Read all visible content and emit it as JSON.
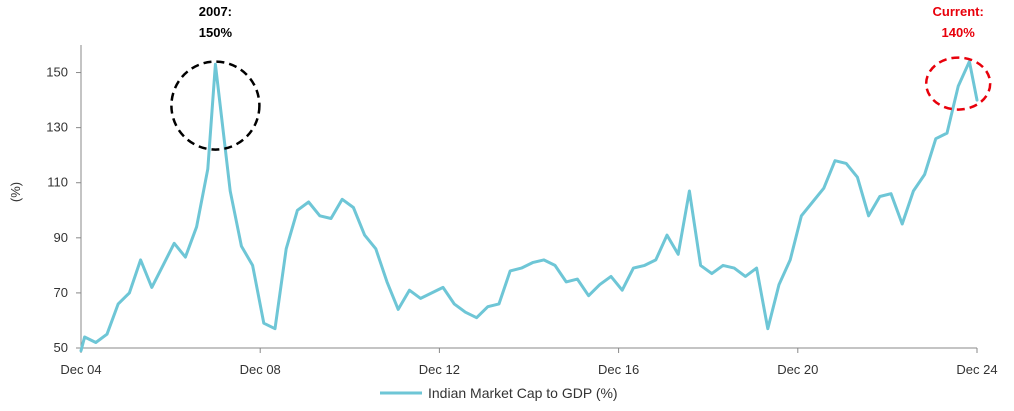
{
  "chart_data": {
    "type": "line",
    "ylabel": "(%)",
    "ylim": [
      50,
      160
    ],
    "yticks": [
      "50",
      "70",
      "90",
      "110",
      "130",
      "150"
    ],
    "xlim": [
      2004.92,
      2024.92
    ],
    "xticks": [
      {
        "x": 2004.92,
        "label": "Dec 04"
      },
      {
        "x": 2008.92,
        "label": "Dec 08"
      },
      {
        "x": 2012.92,
        "label": "Dec 12"
      },
      {
        "x": 2016.92,
        "label": "Dec 16"
      },
      {
        "x": 2020.92,
        "label": "Dec 20"
      },
      {
        "x": 2024.92,
        "label": "Dec 24"
      }
    ],
    "grid": false,
    "legend_position": "bottom",
    "series": [
      {
        "name": "Indian Market Cap to GDP (%)",
        "color": "#6EC6D6",
        "x": [
          2004.92,
          2005.0,
          2005.25,
          2005.5,
          2005.75,
          2006.0,
          2006.25,
          2006.5,
          2006.75,
          2007.0,
          2007.25,
          2007.5,
          2007.75,
          2007.92,
          2008.25,
          2008.5,
          2008.75,
          2009.0,
          2009.25,
          2009.5,
          2009.75,
          2010.0,
          2010.25,
          2010.5,
          2010.75,
          2011.0,
          2011.25,
          2011.5,
          2011.75,
          2012.0,
          2012.25,
          2012.5,
          2012.75,
          2013.0,
          2013.25,
          2013.5,
          2013.75,
          2014.0,
          2014.25,
          2014.5,
          2014.75,
          2015.0,
          2015.25,
          2015.5,
          2015.75,
          2016.0,
          2016.25,
          2016.5,
          2016.75,
          2017.0,
          2017.25,
          2017.5,
          2017.75,
          2018.0,
          2018.25,
          2018.5,
          2018.75,
          2019.0,
          2019.25,
          2019.5,
          2019.75,
          2020.0,
          2020.25,
          2020.5,
          2020.75,
          2021.0,
          2021.25,
          2021.5,
          2021.75,
          2022.0,
          2022.25,
          2022.5,
          2022.75,
          2023.0,
          2023.25,
          2023.5,
          2023.75,
          2024.0,
          2024.25,
          2024.5,
          2024.75,
          2024.92
        ],
        "values": [
          49,
          54,
          52,
          55,
          66,
          70,
          82,
          72,
          80,
          88,
          83,
          94,
          115,
          153,
          107,
          87,
          80,
          59,
          57,
          86,
          100,
          103,
          98,
          97,
          104,
          101,
          91,
          86,
          74,
          64,
          71,
          68,
          70,
          72,
          66,
          63,
          61,
          65,
          66,
          78,
          79,
          81,
          82,
          80,
          74,
          75,
          69,
          73,
          76,
          71,
          79,
          80,
          82,
          91,
          84,
          107,
          80,
          77,
          80,
          79,
          76,
          79,
          57,
          73,
          82,
          98,
          103,
          108,
          118,
          117,
          112,
          98,
          105,
          106,
          95,
          107,
          113,
          126,
          128,
          145,
          154,
          140
        ]
      }
    ],
    "annotations": [
      {
        "text_lines": [
          "2007:",
          "150%"
        ],
        "color": "#000000",
        "circle_x": 2007.92,
        "circle_y": 138
      },
      {
        "text_lines": [
          "Current:",
          "140%"
        ],
        "color": "#E8000B",
        "circle_x": 2024.5,
        "circle_y": 146
      }
    ]
  }
}
